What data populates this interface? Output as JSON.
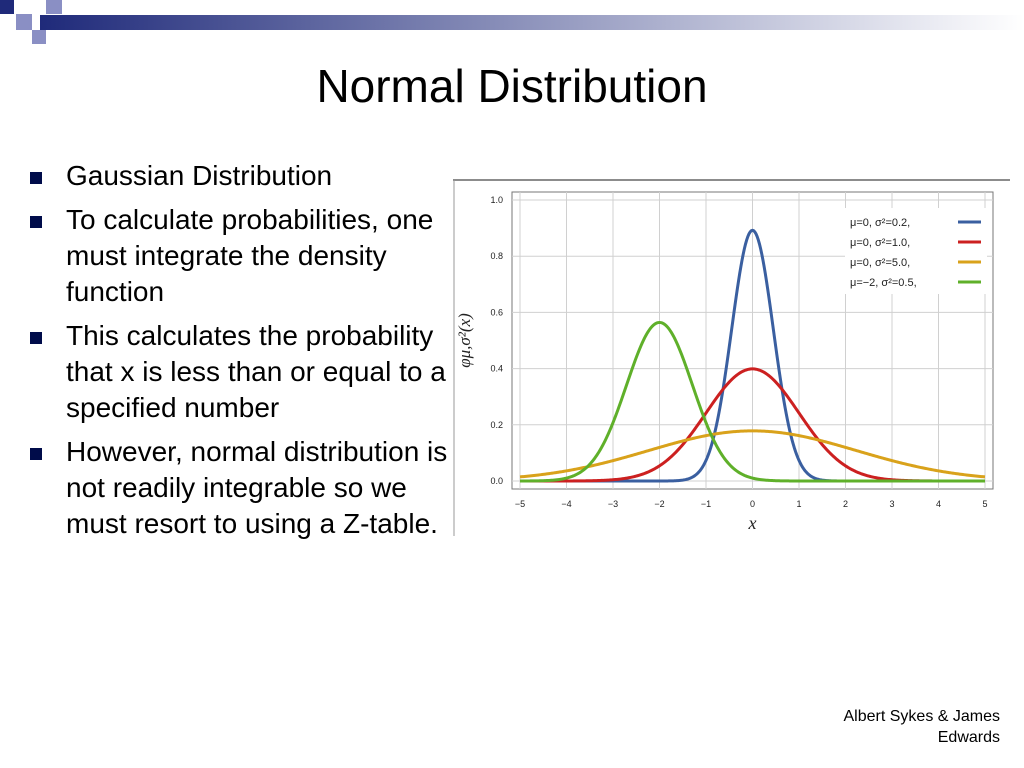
{
  "slide": {
    "title": "Normal Distribution",
    "bullets": [
      "Gaussian Distribution",
      "To calculate probabilities, one must integrate the density function",
      "This calculates the probability that x is less than or equal to a specified number",
      "However, normal distribution is not readily integrable so we must resort to using a Z-table."
    ],
    "footer": "Albert Sykes & James Edwards",
    "colors": {
      "bullet": "#000c4a",
      "band_dark": "#1f2a7a",
      "band_light": "#ffffff",
      "squares": "#8a8fc4"
    }
  },
  "chart_data": {
    "type": "line",
    "xlabel": "x",
    "ylabel": "φμ,σ²(x)",
    "xlim": [
      -5,
      5
    ],
    "ylim": [
      0,
      1.0
    ],
    "x_ticks": [
      "−5",
      "−4",
      "−3",
      "−2",
      "−1",
      "0",
      "1",
      "2",
      "3",
      "4",
      "5"
    ],
    "y_ticks": [
      "0.0",
      "0.2",
      "0.4",
      "0.6",
      "0.8",
      "1.0"
    ],
    "grid": true,
    "legend_position": "top-right",
    "series": [
      {
        "name": "μ=0,  σ²=0.2,",
        "mu": 0,
        "variance": 0.2,
        "color": "#3a5fa0"
      },
      {
        "name": "μ=0,  σ²=1.0,",
        "mu": 0,
        "variance": 1.0,
        "color": "#cc2020"
      },
      {
        "name": "μ=0,  σ²=5.0,",
        "mu": 0,
        "variance": 5.0,
        "color": "#d9a21b"
      },
      {
        "name": "μ=−2, σ²=0.5,",
        "mu": -2,
        "variance": 0.5,
        "color": "#5fb02a"
      }
    ]
  }
}
